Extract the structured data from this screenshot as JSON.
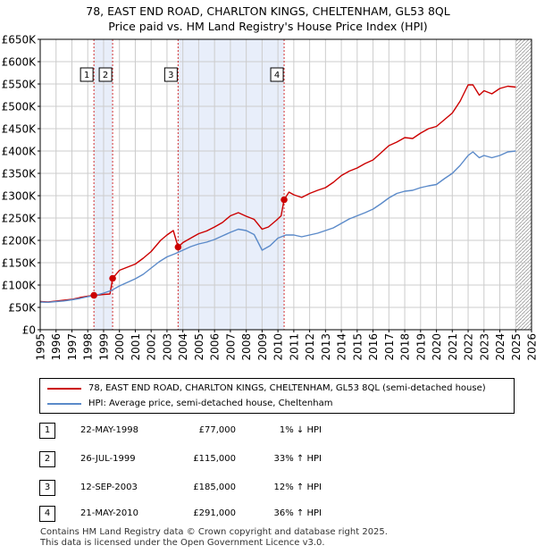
{
  "header": {
    "title_line1": "78, EAST END ROAD, CHARLTON KINGS, CHELTENHAM, GL53 8QL",
    "title_line2": "Price paid vs. HM Land Registry's House Price Index (HPI)"
  },
  "colors": {
    "property": "#cc0000",
    "hpi": "#5b8ac9",
    "shade": "#e8eefa",
    "grid": "#cccccc"
  },
  "chart_data": {
    "type": "line",
    "ylim": [
      0,
      650000
    ],
    "xlim": [
      1995,
      2026
    ],
    "y_ticks": [
      0,
      50000,
      100000,
      150000,
      200000,
      250000,
      300000,
      350000,
      400000,
      450000,
      500000,
      550000,
      600000,
      650000
    ],
    "y_tick_labels": [
      "£0",
      "£50K",
      "£100K",
      "£150K",
      "£200K",
      "£250K",
      "£300K",
      "£350K",
      "£400K",
      "£450K",
      "£500K",
      "£550K",
      "£600K",
      "£650K"
    ],
    "x_tick_labels": [
      "1995",
      "1996",
      "1997",
      "1998",
      "1999",
      "2000",
      "2001",
      "2002",
      "2003",
      "2004",
      "2005",
      "2006",
      "2007",
      "2008",
      "2009",
      "2010",
      "2011",
      "2012",
      "2013",
      "2014",
      "2015",
      "2016",
      "2017",
      "2018",
      "2019",
      "2020",
      "2021",
      "2022",
      "2023",
      "2024",
      "2025",
      "2026"
    ],
    "shaded_ranges": [
      [
        1998.39,
        1999.57
      ],
      [
        2003.7,
        2010.39
      ]
    ],
    "future_hatch_from": 2025.0,
    "series": [
      {
        "name": "78, EAST END ROAD, CHARLTON KINGS, CHELTENHAM, GL53 8QL (semi-detached house)",
        "points": [
          [
            1995,
            63000
          ],
          [
            1995.5,
            62000
          ],
          [
            1996,
            64000
          ],
          [
            1996.5,
            66000
          ],
          [
            1997,
            68000
          ],
          [
            1997.5,
            72000
          ],
          [
            1998,
            75000
          ],
          [
            1998.39,
            77000
          ],
          [
            1998.6,
            77500
          ],
          [
            1999,
            79000
          ],
          [
            1999.4,
            80000
          ],
          [
            1999.57,
            115000
          ],
          [
            2000,
            133000
          ],
          [
            2000.5,
            140000
          ],
          [
            2001,
            147000
          ],
          [
            2001.5,
            160000
          ],
          [
            2002,
            175000
          ],
          [
            2002.6,
            200000
          ],
          [
            2003,
            212000
          ],
          [
            2003.4,
            222000
          ],
          [
            2003.7,
            185000
          ],
          [
            2004,
            195000
          ],
          [
            2004.5,
            205000
          ],
          [
            2005,
            215000
          ],
          [
            2005.5,
            221000
          ],
          [
            2006,
            230000
          ],
          [
            2006.5,
            240000
          ],
          [
            2007,
            255000
          ],
          [
            2007.5,
            262000
          ],
          [
            2008,
            254000
          ],
          [
            2008.5,
            247000
          ],
          [
            2009,
            225000
          ],
          [
            2009.4,
            230000
          ],
          [
            2009.9,
            245000
          ],
          [
            2010.2,
            255000
          ],
          [
            2010.39,
            291000
          ],
          [
            2010.7,
            308000
          ],
          [
            2011,
            302000
          ],
          [
            2011.5,
            296000
          ],
          [
            2012,
            305000
          ],
          [
            2012.5,
            312000
          ],
          [
            2013,
            318000
          ],
          [
            2013.5,
            330000
          ],
          [
            2014,
            345000
          ],
          [
            2014.5,
            355000
          ],
          [
            2015,
            362000
          ],
          [
            2015.5,
            372000
          ],
          [
            2016,
            380000
          ],
          [
            2016.5,
            396000
          ],
          [
            2017,
            412000
          ],
          [
            2017.5,
            420000
          ],
          [
            2018,
            430000
          ],
          [
            2018.5,
            428000
          ],
          [
            2019,
            440000
          ],
          [
            2019.5,
            450000
          ],
          [
            2020,
            455000
          ],
          [
            2020.5,
            470000
          ],
          [
            2021,
            485000
          ],
          [
            2021.5,
            512000
          ],
          [
            2022,
            548000
          ],
          [
            2022.3,
            548000
          ],
          [
            2022.7,
            525000
          ],
          [
            2023,
            535000
          ],
          [
            2023.5,
            528000
          ],
          [
            2024,
            540000
          ],
          [
            2024.5,
            545000
          ],
          [
            2025,
            543000
          ]
        ]
      },
      {
        "name": "HPI: Average price, semi-detached house, Cheltenham",
        "points": [
          [
            1995,
            62000
          ],
          [
            1995.5,
            61500
          ],
          [
            1996,
            63000
          ],
          [
            1996.5,
            64500
          ],
          [
            1997,
            67000
          ],
          [
            1997.5,
            70000
          ],
          [
            1998,
            74000
          ],
          [
            1998.5,
            77000
          ],
          [
            1999,
            82000
          ],
          [
            1999.5,
            88000
          ],
          [
            2000,
            98000
          ],
          [
            2000.5,
            106000
          ],
          [
            2001,
            114000
          ],
          [
            2001.5,
            124000
          ],
          [
            2002,
            138000
          ],
          [
            2002.5,
            152000
          ],
          [
            2003,
            163000
          ],
          [
            2003.5,
            170000
          ],
          [
            2004,
            178000
          ],
          [
            2004.5,
            186000
          ],
          [
            2005,
            192000
          ],
          [
            2005.5,
            196000
          ],
          [
            2006,
            202000
          ],
          [
            2006.5,
            210000
          ],
          [
            2007,
            218000
          ],
          [
            2007.5,
            225000
          ],
          [
            2008,
            222000
          ],
          [
            2008.5,
            213000
          ],
          [
            2009,
            178000
          ],
          [
            2009.5,
            188000
          ],
          [
            2010,
            205000
          ],
          [
            2010.5,
            212000
          ],
          [
            2011,
            212000
          ],
          [
            2011.5,
            208000
          ],
          [
            2012,
            212000
          ],
          [
            2012.5,
            216000
          ],
          [
            2013,
            222000
          ],
          [
            2013.5,
            228000
          ],
          [
            2014,
            238000
          ],
          [
            2014.5,
            248000
          ],
          [
            2015,
            255000
          ],
          [
            2015.5,
            262000
          ],
          [
            2016,
            270000
          ],
          [
            2016.5,
            282000
          ],
          [
            2017,
            295000
          ],
          [
            2017.5,
            305000
          ],
          [
            2018,
            310000
          ],
          [
            2018.5,
            312000
          ],
          [
            2019,
            318000
          ],
          [
            2019.5,
            322000
          ],
          [
            2020,
            325000
          ],
          [
            2020.5,
            338000
          ],
          [
            2021,
            350000
          ],
          [
            2021.5,
            368000
          ],
          [
            2022,
            390000
          ],
          [
            2022.3,
            398000
          ],
          [
            2022.7,
            385000
          ],
          [
            2023,
            390000
          ],
          [
            2023.5,
            385000
          ],
          [
            2024,
            390000
          ],
          [
            2024.5,
            398000
          ],
          [
            2025,
            400000
          ]
        ]
      }
    ],
    "markers": [
      {
        "label": "1",
        "x": 1998.39,
        "y": 77000
      },
      {
        "label": "2",
        "x": 1999.57,
        "y": 115000
      },
      {
        "label": "3",
        "x": 2003.7,
        "y": 185000
      },
      {
        "label": "4",
        "x": 2010.39,
        "y": 291000
      }
    ]
  },
  "legend": {
    "property_label": "78, EAST END ROAD, CHARLTON KINGS, CHELTENHAM, GL53 8QL (semi-detached house)",
    "hpi_label": "HPI: Average price, semi-detached house, Cheltenham"
  },
  "transactions": [
    {
      "num": "1",
      "date": "22-MAY-1998",
      "price": "£77,000",
      "diff": "1% ↓ HPI"
    },
    {
      "num": "2",
      "date": "26-JUL-1999",
      "price": "£115,000",
      "diff": "33% ↑ HPI"
    },
    {
      "num": "3",
      "date": "12-SEP-2003",
      "price": "£185,000",
      "diff": "12% ↑ HPI"
    },
    {
      "num": "4",
      "date": "21-MAY-2010",
      "price": "£291,000",
      "diff": "36% ↑ HPI"
    }
  ],
  "footer": {
    "line1": "Contains HM Land Registry data © Crown copyright and database right 2025.",
    "line2": "This data is licensed under the Open Government Licence v3.0."
  }
}
